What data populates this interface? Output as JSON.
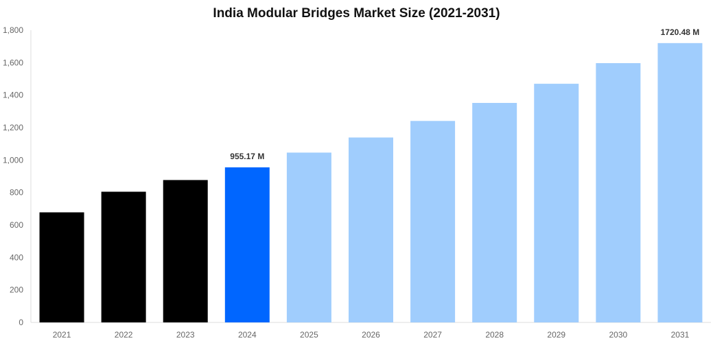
{
  "chart_data": {
    "type": "bar",
    "title": "India Modular Bridges Market Size (2021-2031)",
    "xlabel": "",
    "ylabel": "",
    "ylim": [
      0,
      1800
    ],
    "yticks": [
      0,
      200,
      400,
      600,
      800,
      1000,
      1200,
      1400,
      1600,
      1800
    ],
    "ytick_labels": [
      "0",
      "200",
      "400",
      "600",
      "800",
      "1,000",
      "1,200",
      "1,400",
      "1,600",
      "1,800"
    ],
    "grid": false,
    "categories": [
      "2021",
      "2022",
      "2023",
      "2024",
      "2025",
      "2026",
      "2027",
      "2028",
      "2029",
      "2030",
      "2031"
    ],
    "values": [
      678,
      805,
      877,
      955.17,
      1046,
      1139,
      1241,
      1352,
      1470,
      1597,
      1720.48
    ],
    "bar_colors": [
      "#000000",
      "#000000",
      "#000000",
      "#0066ff",
      "#a0cdfd",
      "#a0cdfd",
      "#a0cdfd",
      "#a0cdfd",
      "#a0cdfd",
      "#a0cdfd",
      "#a0cdfd"
    ],
    "data_labels": [
      {
        "category": "2024",
        "text": "955.17 M"
      },
      {
        "category": "2031",
        "text": "1720.48 M"
      }
    ]
  }
}
